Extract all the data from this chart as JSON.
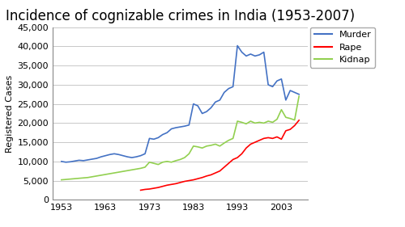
{
  "title": "Incidence of cognizable crimes in India (1953-2007)",
  "ylabel": "Registered Cases",
  "ylim": [
    0,
    45000
  ],
  "yticks": [
    0,
    5000,
    10000,
    15000,
    20000,
    25000,
    30000,
    35000,
    40000,
    45000
  ],
  "xticks": [
    1953,
    1963,
    1973,
    1983,
    1993,
    2003
  ],
  "xlim": [
    1951,
    2009
  ],
  "murder": {
    "years": [
      1953,
      1954,
      1955,
      1956,
      1957,
      1958,
      1959,
      1960,
      1961,
      1962,
      1963,
      1964,
      1965,
      1966,
      1967,
      1968,
      1969,
      1970,
      1971,
      1972,
      1973,
      1974,
      1975,
      1976,
      1977,
      1978,
      1979,
      1980,
      1981,
      1982,
      1983,
      1984,
      1985,
      1986,
      1987,
      1988,
      1989,
      1990,
      1991,
      1992,
      1993,
      1994,
      1995,
      1996,
      1997,
      1998,
      1999,
      2000,
      2001,
      2002,
      2003,
      2004,
      2005,
      2006,
      2007
    ],
    "values": [
      10000,
      9800,
      9900,
      10100,
      10300,
      10200,
      10400,
      10600,
      10800,
      11200,
      11500,
      11800,
      12000,
      11800,
      11500,
      11200,
      11000,
      11200,
      11500,
      12000,
      16000,
      15800,
      16200,
      17000,
      17500,
      18500,
      18800,
      19000,
      19200,
      19500,
      25000,
      24500,
      22500,
      23000,
      24000,
      25500,
      26000,
      28000,
      29000,
      29500,
      40200,
      38500,
      37500,
      38000,
      37500,
      37800,
      38500,
      30000,
      29500,
      31000,
      31500,
      26000,
      28500,
      28000,
      27500
    ],
    "color": "#4472C4"
  },
  "rape": {
    "years": [
      1971,
      1972,
      1973,
      1974,
      1975,
      1976,
      1977,
      1978,
      1979,
      1980,
      1981,
      1982,
      1983,
      1984,
      1985,
      1986,
      1987,
      1988,
      1989,
      1990,
      1991,
      1992,
      1993,
      1994,
      1995,
      1996,
      1997,
      1998,
      1999,
      2000,
      2001,
      2002,
      2003,
      2004,
      2005,
      2006,
      2007
    ],
    "values": [
      2500,
      2700,
      2800,
      3000,
      3200,
      3500,
      3800,
      4000,
      4200,
      4500,
      4800,
      5000,
      5200,
      5500,
      5800,
      6200,
      6500,
      7000,
      7500,
      8500,
      9500,
      10500,
      11000,
      12000,
      13500,
      14500,
      15000,
      15500,
      16000,
      16200,
      16000,
      16400,
      15800,
      18000,
      18359,
      19348,
      20737
    ],
    "color": "#FF0000"
  },
  "kidnap": {
    "years": [
      1953,
      1954,
      1955,
      1956,
      1957,
      1958,
      1959,
      1960,
      1961,
      1962,
      1963,
      1964,
      1965,
      1966,
      1967,
      1968,
      1969,
      1970,
      1971,
      1972,
      1973,
      1974,
      1975,
      1976,
      1977,
      1978,
      1979,
      1980,
      1981,
      1982,
      1983,
      1984,
      1985,
      1986,
      1987,
      1988,
      1989,
      1990,
      1991,
      1992,
      1993,
      1994,
      1995,
      1996,
      1997,
      1998,
      1999,
      2000,
      2001,
      2002,
      2003,
      2004,
      2005,
      2006,
      2007
    ],
    "values": [
      5200,
      5300,
      5400,
      5500,
      5600,
      5700,
      5800,
      6000,
      6200,
      6400,
      6600,
      6800,
      7000,
      7200,
      7400,
      7600,
      7800,
      8000,
      8200,
      8500,
      9800,
      9500,
      9200,
      9800,
      10000,
      9800,
      10200,
      10500,
      11000,
      12000,
      14000,
      13800,
      13500,
      14000,
      14200,
      14500,
      14000,
      14800,
      15500,
      16000,
      20500,
      20200,
      19800,
      20500,
      20000,
      20200,
      20000,
      20500,
      20200,
      21000,
      23500,
      21500,
      21200,
      20800,
      27000
    ],
    "color": "#92D050"
  },
  "background_color": "#FFFFFF",
  "plot_bg_color": "#FFFFFF",
  "grid_color": "#C8C8C8",
  "title_fontsize": 12,
  "label_fontsize": 8,
  "tick_fontsize": 8,
  "legend_labels": [
    "Murder",
    "Rape",
    "Kidnap"
  ],
  "legend_colors": [
    "#4472C4",
    "#FF0000",
    "#92D050"
  ],
  "legend_fontsize": 8
}
